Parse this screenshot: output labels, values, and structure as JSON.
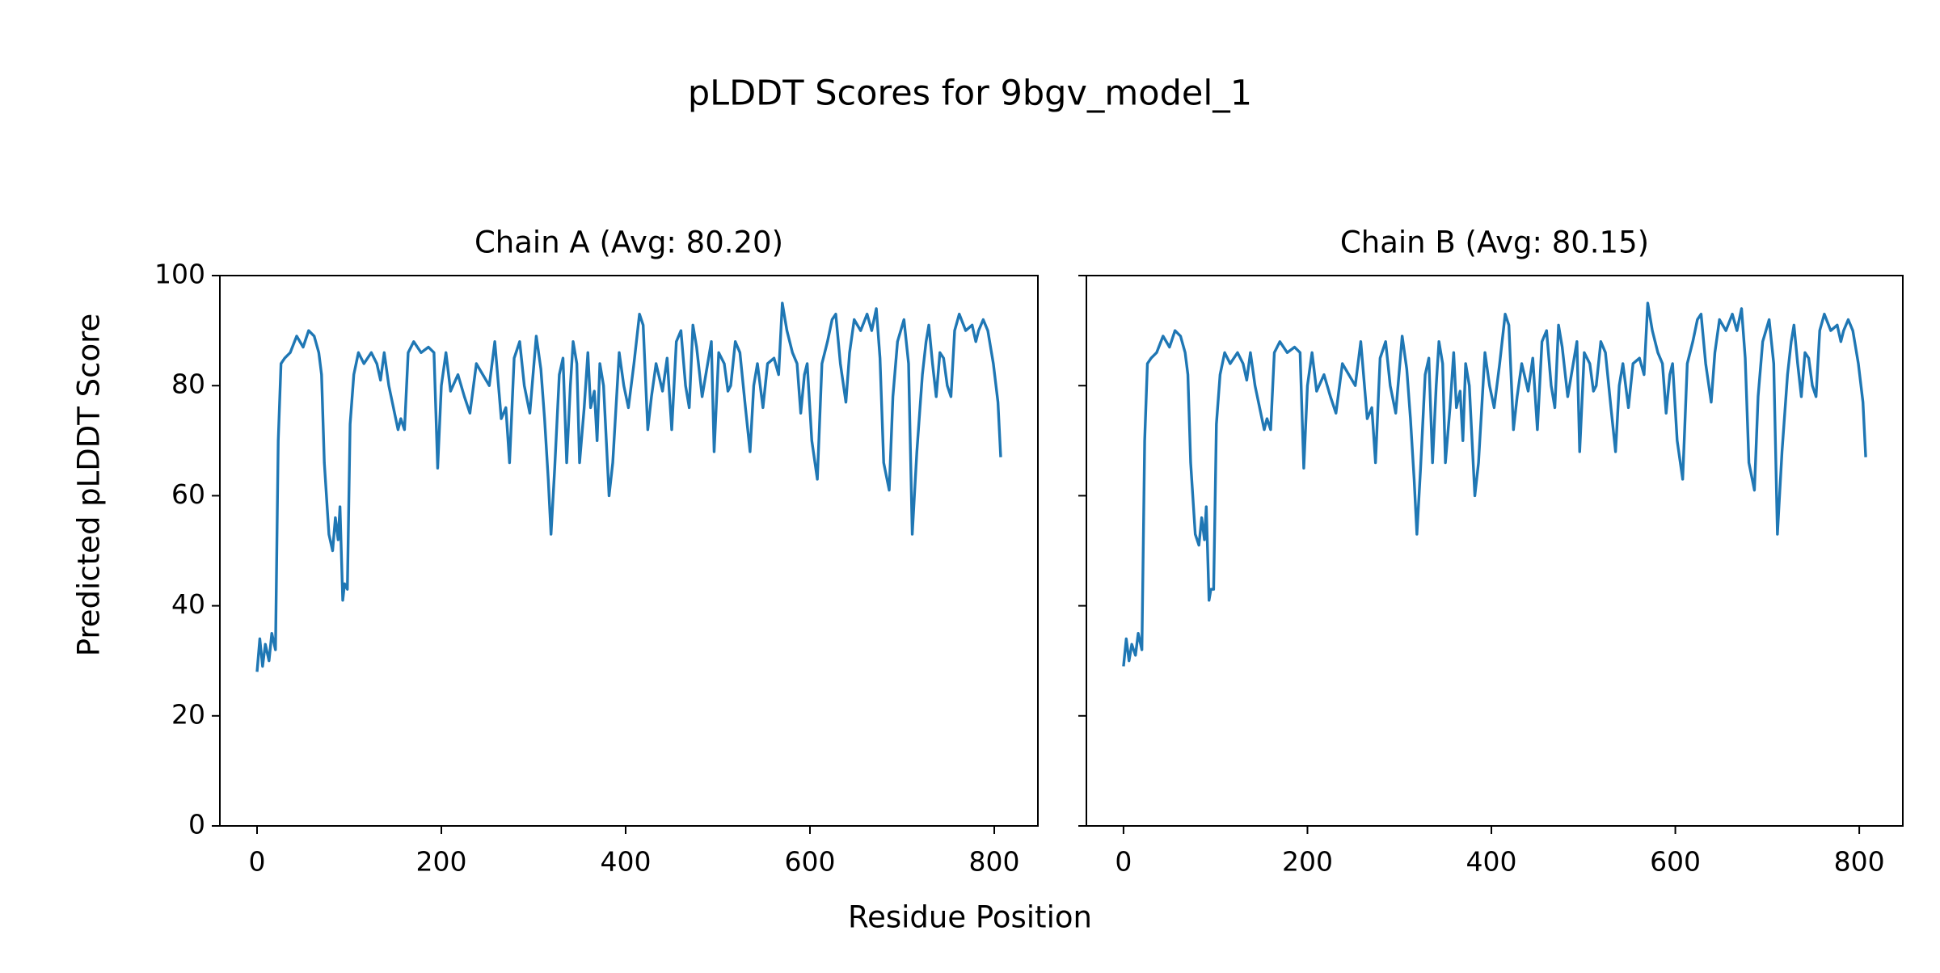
{
  "title": "pLDDT Scores for 9bgv_model_1",
  "xlabel": "Residue Position",
  "ylabel": "Predicted pLDDT Score",
  "chart_data": [
    {
      "type": "line",
      "title": "Chain A (Avg: 80.20)",
      "color": "#1f77b4",
      "xlim": [
        -40.35,
        847.35
      ],
      "ylim": [
        0,
        100
      ],
      "xticks": [
        0,
        200,
        400,
        600,
        800
      ],
      "yticks": [
        0,
        20,
        40,
        60,
        80,
        100
      ],
      "ytick_labels": true,
      "x": [
        0,
        3,
        6,
        9,
        13,
        16,
        20,
        23,
        26,
        30,
        36,
        43,
        50,
        56,
        62,
        67,
        70,
        73,
        78,
        82,
        85,
        88,
        90,
        93,
        95,
        98,
        101,
        105,
        110,
        116,
        124,
        130,
        134,
        138,
        143,
        148,
        153,
        156,
        160,
        164,
        170,
        178,
        186,
        192,
        196,
        200,
        205,
        210,
        218,
        225,
        231,
        238,
        245,
        252,
        258,
        265,
        270,
        274,
        279,
        285,
        290,
        296,
        303,
        308,
        312,
        316,
        319,
        323,
        328,
        332,
        336,
        340,
        343,
        347,
        350,
        355,
        359,
        362,
        366,
        369,
        372,
        376,
        382,
        386,
        393,
        398,
        403,
        409,
        415,
        419,
        424,
        428,
        433,
        440,
        445,
        450,
        455,
        460,
        465,
        469,
        473,
        477,
        483,
        489,
        493,
        496,
        501,
        507,
        511,
        514,
        519,
        524,
        530,
        535,
        539,
        543,
        549,
        554,
        561,
        566,
        570,
        575,
        581,
        586,
        590,
        594,
        597,
        602,
        608,
        613,
        619,
        624,
        628,
        633,
        639,
        643,
        648,
        655,
        662,
        667,
        672,
        676,
        680,
        686,
        690,
        695,
        702,
        707,
        711,
        716,
        722,
        726,
        729,
        733,
        737,
        741,
        745,
        749,
        753,
        757,
        762,
        769,
        776,
        780,
        783,
        788,
        793,
        799,
        804,
        807
      ],
      "values": [
        28,
        34,
        29,
        33,
        30,
        35,
        32,
        70,
        84,
        85,
        86,
        89,
        87,
        90,
        89,
        86,
        82,
        66,
        53,
        50,
        56,
        52,
        58,
        41,
        44,
        43,
        73,
        82,
        86,
        84,
        86,
        84,
        81,
        86,
        80,
        76,
        72,
        74,
        72,
        86,
        88,
        86,
        87,
        86,
        65,
        80,
        86,
        79,
        82,
        78,
        75,
        84,
        82,
        80,
        88,
        74,
        76,
        66,
        85,
        88,
        80,
        75,
        89,
        83,
        74,
        63,
        53,
        65,
        82,
        85,
        66,
        80,
        88,
        84,
        66,
        76,
        86,
        76,
        79,
        70,
        84,
        80,
        60,
        66,
        86,
        80,
        76,
        84,
        93,
        91,
        72,
        78,
        84,
        79,
        85,
        72,
        88,
        90,
        80,
        76,
        91,
        87,
        78,
        84,
        88,
        68,
        86,
        84,
        79,
        80,
        88,
        86,
        76,
        68,
        80,
        84,
        76,
        84,
        85,
        82,
        95,
        90,
        86,
        84,
        75,
        82,
        84,
        70,
        63,
        84,
        88,
        92,
        93,
        84,
        77,
        86,
        92,
        90,
        93,
        90,
        94,
        85,
        66,
        61,
        78,
        88,
        92,
        84,
        53,
        68,
        82,
        88,
        91,
        84,
        78,
        86,
        85,
        80,
        78,
        90,
        93,
        90,
        91,
        88,
        90,
        92,
        90,
        84,
        77,
        67
      ]
    },
    {
      "type": "line",
      "title": "Chain B (Avg: 80.15)",
      "color": "#1f77b4",
      "xlim": [
        -40.35,
        847.35
      ],
      "ylim": [
        0,
        100
      ],
      "xticks": [
        0,
        200,
        400,
        600,
        800
      ],
      "yticks": [
        0,
        20,
        40,
        60,
        80,
        100
      ],
      "ytick_labels": false,
      "x": [
        0,
        3,
        6,
        9,
        13,
        16,
        20,
        23,
        26,
        30,
        36,
        43,
        50,
        56,
        62,
        67,
        70,
        73,
        78,
        82,
        85,
        88,
        90,
        93,
        95,
        98,
        101,
        105,
        110,
        116,
        124,
        130,
        134,
        138,
        143,
        148,
        153,
        156,
        160,
        164,
        170,
        178,
        186,
        192,
        196,
        200,
        205,
        210,
        218,
        225,
        231,
        238,
        245,
        252,
        258,
        265,
        270,
        274,
        279,
        285,
        290,
        296,
        303,
        308,
        312,
        316,
        319,
        323,
        328,
        332,
        336,
        340,
        343,
        347,
        350,
        355,
        359,
        362,
        366,
        369,
        372,
        376,
        382,
        386,
        393,
        398,
        403,
        409,
        415,
        419,
        424,
        428,
        433,
        440,
        445,
        450,
        455,
        460,
        465,
        469,
        473,
        477,
        483,
        489,
        493,
        496,
        501,
        507,
        511,
        514,
        519,
        524,
        530,
        535,
        539,
        543,
        549,
        554,
        561,
        566,
        570,
        575,
        581,
        586,
        590,
        594,
        597,
        602,
        608,
        613,
        619,
        624,
        628,
        633,
        639,
        643,
        648,
        655,
        662,
        667,
        672,
        676,
        680,
        686,
        690,
        695,
        702,
        707,
        711,
        716,
        722,
        726,
        729,
        733,
        737,
        741,
        745,
        749,
        753,
        757,
        762,
        769,
        776,
        780,
        783,
        788,
        793,
        799,
        804,
        807
      ],
      "values": [
        29,
        34,
        30,
        33,
        31,
        35,
        32,
        70,
        84,
        85,
        86,
        89,
        87,
        90,
        89,
        86,
        82,
        66,
        53,
        51,
        56,
        52,
        58,
        41,
        43,
        43,
        73,
        82,
        86,
        84,
        86,
        84,
        81,
        86,
        80,
        76,
        72,
        74,
        72,
        86,
        88,
        86,
        87,
        86,
        65,
        80,
        86,
        79,
        82,
        78,
        75,
        84,
        82,
        80,
        88,
        74,
        76,
        66,
        85,
        88,
        80,
        75,
        89,
        83,
        74,
        63,
        53,
        65,
        82,
        85,
        66,
        80,
        88,
        84,
        66,
        76,
        86,
        76,
        79,
        70,
        84,
        80,
        60,
        66,
        86,
        80,
        76,
        84,
        93,
        91,
        72,
        78,
        84,
        79,
        85,
        72,
        88,
        90,
        80,
        76,
        91,
        87,
        78,
        84,
        88,
        68,
        86,
        84,
        79,
        80,
        88,
        86,
        76,
        68,
        80,
        84,
        76,
        84,
        85,
        82,
        95,
        90,
        86,
        84,
        75,
        82,
        84,
        70,
        63,
        84,
        88,
        92,
        93,
        84,
        77,
        86,
        92,
        90,
        93,
        90,
        94,
        85,
        66,
        61,
        78,
        88,
        92,
        84,
        53,
        68,
        82,
        88,
        91,
        84,
        78,
        86,
        85,
        80,
        78,
        90,
        93,
        90,
        91,
        88,
        90,
        92,
        90,
        84,
        77,
        67
      ]
    }
  ]
}
